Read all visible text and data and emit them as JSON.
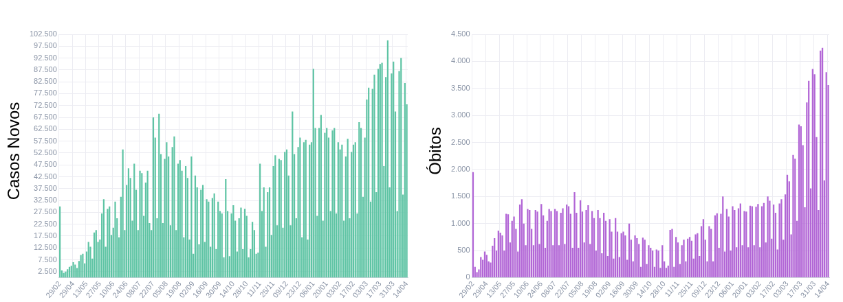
{
  "chart_data": [
    {
      "type": "bar",
      "ylabel": "Casos Novos",
      "color": "#5ec4a4",
      "grid": true,
      "legend": false,
      "categories": [
        "29/02",
        null,
        null,
        null,
        null,
        null,
        null,
        "29/04",
        null,
        null,
        null,
        null,
        null,
        null,
        "13/05",
        null,
        null,
        null,
        null,
        null,
        null,
        "27/05",
        null,
        null,
        null,
        null,
        null,
        null,
        "10/06",
        null,
        null,
        null,
        null,
        null,
        null,
        "24/06",
        null,
        null,
        null,
        null,
        null,
        null,
        "08/07",
        null,
        null,
        null,
        null,
        null,
        null,
        "22/07",
        null,
        null,
        null,
        null,
        null,
        null,
        "05/08",
        null,
        null,
        null,
        null,
        null,
        null,
        "19/08",
        null,
        null,
        null,
        null,
        null,
        null,
        "02/09",
        null,
        null,
        null,
        null,
        null,
        null,
        "16/09",
        null,
        null,
        null,
        null,
        null,
        null,
        "30/09",
        null,
        null,
        null,
        null,
        null,
        null,
        "14/10",
        null,
        null,
        null,
        null,
        null,
        null,
        "28/10",
        null,
        null,
        null,
        null,
        null,
        null,
        "11/11",
        null,
        null,
        null,
        null,
        null,
        null,
        "25/11",
        null,
        null,
        null,
        null,
        null,
        null,
        "09/12",
        null,
        null,
        null,
        null,
        null,
        null,
        "23/12",
        null,
        null,
        null,
        null,
        null,
        null,
        "06/01",
        null,
        null,
        null,
        null,
        null,
        null,
        "20/01",
        null,
        null,
        null,
        null,
        null,
        null,
        "03/02",
        null,
        null,
        null,
        null,
        null,
        null,
        "17/02",
        null,
        null,
        null,
        null,
        null,
        null,
        "03/03",
        null,
        null,
        null,
        null,
        null,
        null,
        "17/03",
        null,
        null,
        null,
        null,
        null,
        null,
        "31/03",
        null,
        null,
        null,
        null,
        null,
        null,
        "14/04"
      ],
      "values": [
        30000,
        3000,
        2000,
        2500,
        3500,
        4500,
        5000,
        6500,
        5500,
        4000,
        7000,
        9500,
        10000,
        6000,
        11000,
        15000,
        13000,
        8000,
        19000,
        20000,
        15000,
        16000,
        27000,
        33000,
        13000,
        29000,
        30000,
        18000,
        21000,
        32000,
        25000,
        17000,
        34000,
        54000,
        20000,
        39000,
        46000,
        42000,
        24000,
        48000,
        37000,
        20000,
        45000,
        44000,
        26000,
        40000,
        45000,
        23000,
        20000,
        67500,
        59000,
        25000,
        69000,
        52000,
        23000,
        50000,
        57000,
        51000,
        22000,
        55000,
        59500,
        20000,
        48000,
        49500,
        45000,
        17000,
        47000,
        42000,
        16000,
        51000,
        10000,
        43000,
        38000,
        14000,
        37000,
        39000,
        15000,
        33000,
        32000,
        13000,
        33500,
        35500,
        12000,
        32000,
        28000,
        27000,
        8500,
        41500,
        28000,
        9000,
        27000,
        30500,
        24000,
        11000,
        25000,
        29500,
        12000,
        29000,
        26000,
        8500,
        12000,
        23500,
        20000,
        10000,
        10500,
        48000,
        28000,
        38000,
        13000,
        36000,
        38000,
        18000,
        47000,
        51500,
        22000,
        50000,
        49500,
        21000,
        53000,
        54000,
        43000,
        22000,
        70000,
        52000,
        25000,
        55000,
        59000,
        17000,
        57000,
        58000,
        16000,
        56000,
        57000,
        88000,
        63000,
        26000,
        63000,
        68500,
        24000,
        61000,
        63000,
        59000,
        28000,
        62000,
        63000,
        27000,
        57000,
        54000,
        56000,
        24000,
        51000,
        58500,
        25000,
        53000,
        56000,
        57000,
        27000,
        65500,
        63000,
        34000,
        59000,
        75000,
        80000,
        32000,
        79500,
        85500,
        36000,
        88000,
        90000,
        90500,
        47000,
        84500,
        100000,
        38000,
        86000,
        91000,
        70000,
        28000,
        87000,
        92500,
        35000,
        82000,
        73000
      ],
      "ylim": [
        0,
        102500
      ],
      "yticks": [
        {
          "value": 2500,
          "label": "2.500"
        },
        {
          "value": 7500,
          "label": "7.500"
        },
        {
          "value": 12500,
          "label": "12.500"
        },
        {
          "value": 17500,
          "label": "17.500"
        },
        {
          "value": 22500,
          "label": "22.500"
        },
        {
          "value": 27500,
          "label": "27.500"
        },
        {
          "value": 32500,
          "label": "32.500"
        },
        {
          "value": 37500,
          "label": "37.500"
        },
        {
          "value": 42500,
          "label": "42.500"
        },
        {
          "value": 47500,
          "label": "47.500"
        },
        {
          "value": 52500,
          "label": "52.500"
        },
        {
          "value": 57500,
          "label": "57.500"
        },
        {
          "value": 62500,
          "label": "62.500"
        },
        {
          "value": 67500,
          "label": "67.500"
        },
        {
          "value": 72500,
          "label": "72.500"
        },
        {
          "value": 77500,
          "label": "77.500"
        },
        {
          "value": 82500,
          "label": "82.500"
        },
        {
          "value": 87500,
          "label": "87.500"
        },
        {
          "value": 92500,
          "label": "92.500"
        },
        {
          "value": 97500,
          "label": "97.500"
        },
        {
          "value": 102500,
          "label": "102.500"
        }
      ]
    },
    {
      "type": "bar",
      "ylabel": "Óbitos",
      "color": "#b266d6",
      "grid": true,
      "legend": false,
      "categories": [
        "29/02",
        null,
        null,
        null,
        null,
        null,
        null,
        "29/04",
        null,
        null,
        null,
        null,
        null,
        null,
        "13/05",
        null,
        null,
        null,
        null,
        null,
        null,
        "27/05",
        null,
        null,
        null,
        null,
        null,
        null,
        "10/06",
        null,
        null,
        null,
        null,
        null,
        null,
        "24/06",
        null,
        null,
        null,
        null,
        null,
        null,
        "08/07",
        null,
        null,
        null,
        null,
        null,
        null,
        "22/07",
        null,
        null,
        null,
        null,
        null,
        null,
        "05/08",
        null,
        null,
        null,
        null,
        null,
        null,
        "19/08",
        null,
        null,
        null,
        null,
        null,
        null,
        "02/09",
        null,
        null,
        null,
        null,
        null,
        null,
        "16/09",
        null,
        null,
        null,
        null,
        null,
        null,
        "30/09",
        null,
        null,
        null,
        null,
        null,
        null,
        "14/10",
        null,
        null,
        null,
        null,
        null,
        null,
        "28/10",
        null,
        null,
        null,
        null,
        null,
        null,
        "11/11",
        null,
        null,
        null,
        null,
        null,
        null,
        "25/11",
        null,
        null,
        null,
        null,
        null,
        null,
        "09/12",
        null,
        null,
        null,
        null,
        null,
        null,
        "23/12",
        null,
        null,
        null,
        null,
        null,
        null,
        "06/01",
        null,
        null,
        null,
        null,
        null,
        null,
        "20/01",
        null,
        null,
        null,
        null,
        null,
        null,
        "03/02",
        null,
        null,
        null,
        null,
        null,
        null,
        "17/02",
        null,
        null,
        null,
        null,
        null,
        null,
        "03/03",
        null,
        null,
        null,
        null,
        null,
        null,
        "17/03",
        null,
        null,
        null,
        null,
        null,
        null,
        "31/03",
        null,
        null,
        null,
        null,
        null,
        null,
        "14/04"
      ],
      "values": [
        1950,
        200,
        100,
        150,
        380,
        330,
        480,
        420,
        300,
        280,
        590,
        730,
        500,
        870,
        830,
        780,
        500,
        1180,
        1170,
        650,
        1050,
        1130,
        900,
        480,
        1350,
        1450,
        1000,
        600,
        1270,
        1250,
        900,
        600,
        1250,
        1220,
        620,
        1360,
        1150,
        550,
        1050,
        1270,
        1230,
        600,
        1270,
        1230,
        600,
        1200,
        1280,
        620,
        1350,
        1320,
        1180,
        550,
        1580,
        1200,
        550,
        1430,
        1220,
        650,
        1250,
        1340,
        620,
        1230,
        1100,
        500,
        1250,
        1100,
        450,
        1200,
        1050,
        400,
        1080,
        850,
        350,
        1100,
        850,
        380,
        820,
        850,
        780,
        330,
        1000,
        700,
        300,
        780,
        730,
        620,
        200,
        740,
        700,
        250,
        600,
        550,
        500,
        200,
        520,
        500,
        180,
        600,
        300,
        180,
        220,
        880,
        900,
        200,
        750,
        650,
        250,
        600,
        700,
        300,
        720,
        750,
        680,
        350,
        800,
        820,
        400,
        950,
        1080,
        700,
        300,
        950,
        900,
        300,
        1150,
        1190,
        550,
        1180,
        1500,
        480,
        1270,
        1130,
        500,
        1320,
        1250,
        560,
        1280,
        1370,
        600,
        1230,
        1220,
        560,
        1330,
        1320,
        600,
        1310,
        1360,
        560,
        1320,
        1380,
        650,
        1500,
        1420,
        720,
        1350,
        1200,
        520,
        1370,
        1450,
        700,
        1540,
        1900,
        1780,
        800,
        2270,
        2200,
        1050,
        2830,
        2800,
        2450,
        1300,
        3240,
        3640,
        1650,
        3860,
        3760,
        2600,
        1250,
        4200,
        4250,
        1800,
        3800,
        3560
      ],
      "ylim": [
        0,
        4500
      ],
      "yticks": [
        0,
        500,
        {
          "value": 1000,
          "label": "1.000"
        },
        {
          "value": 1500,
          "label": "1.500"
        },
        {
          "value": 2000,
          "label": "2.000"
        },
        {
          "value": 2500,
          "label": "2.500"
        },
        {
          "value": 3000,
          "label": "3.000"
        },
        {
          "value": 3500,
          "label": "3.500"
        },
        {
          "value": 4000,
          "label": "4.000"
        },
        {
          "value": 4500,
          "label": "4.500"
        }
      ]
    }
  ]
}
